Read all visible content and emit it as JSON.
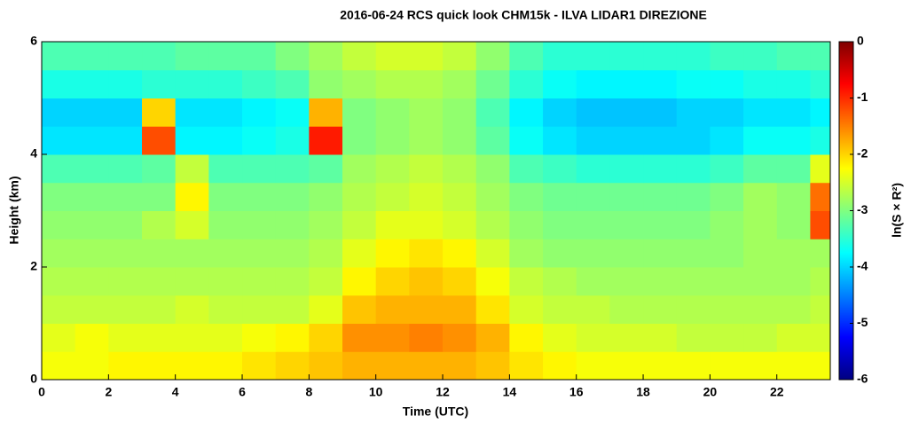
{
  "chart_data": {
    "type": "heatmap",
    "title": "2016-06-24 RCS quick look CHM15k - ILVA LIDAR1 DIREZIONE",
    "xlabel": "Time (UTC)",
    "ylabel": "Height (km)",
    "colorbar_label": "ln(S × R²)",
    "x_edges": [
      0,
      1,
      2,
      3,
      4,
      5,
      6,
      7,
      8,
      9,
      10,
      11,
      12,
      13,
      14,
      15,
      16,
      17,
      18,
      19,
      20,
      21,
      22,
      23,
      23.6
    ],
    "y_edges": [
      0,
      0.5,
      1,
      1.5,
      2,
      2.5,
      3,
      3.5,
      4,
      4.5,
      5,
      5.5,
      6
    ],
    "z": [
      [
        -2.3,
        -2.3,
        -2.2,
        -2.2,
        -2.2,
        -2.2,
        -2.1,
        -2.0,
        -1.9,
        -1.8,
        -1.8,
        -1.8,
        -1.8,
        -1.9,
        -2.1,
        -2.2,
        -2.3,
        -2.3,
        -2.3,
        -2.3,
        -2.3,
        -2.3,
        -2.3,
        -2.3
      ],
      [
        -2.4,
        -2.3,
        -2.4,
        -2.4,
        -2.4,
        -2.4,
        -2.3,
        -2.2,
        -2.0,
        -1.6,
        -1.6,
        -1.5,
        -1.6,
        -1.8,
        -2.2,
        -2.4,
        -2.5,
        -2.5,
        -2.5,
        -2.6,
        -2.6,
        -2.6,
        -2.5,
        -2.5
      ],
      [
        -2.6,
        -2.6,
        -2.6,
        -2.6,
        -2.5,
        -2.6,
        -2.6,
        -2.6,
        -2.4,
        -1.9,
        -1.8,
        -1.8,
        -1.8,
        -2.1,
        -2.5,
        -2.6,
        -2.6,
        -2.7,
        -2.7,
        -2.7,
        -2.7,
        -2.7,
        -2.7,
        -2.6
      ],
      [
        -2.7,
        -2.7,
        -2.7,
        -2.7,
        -2.7,
        -2.7,
        -2.7,
        -2.7,
        -2.6,
        -2.2,
        -2.0,
        -1.9,
        -2.0,
        -2.3,
        -2.6,
        -2.7,
        -2.8,
        -2.8,
        -2.8,
        -2.8,
        -2.8,
        -2.8,
        -2.8,
        -2.7
      ],
      [
        -2.8,
        -2.8,
        -2.8,
        -2.8,
        -2.8,
        -2.8,
        -2.8,
        -2.8,
        -2.7,
        -2.4,
        -2.2,
        -2.1,
        -2.2,
        -2.5,
        -2.8,
        -2.9,
        -2.9,
        -2.9,
        -2.9,
        -2.9,
        -2.9,
        -2.8,
        -2.8,
        -2.8
      ],
      [
        -2.9,
        -2.9,
        -2.9,
        -2.7,
        -2.5,
        -2.9,
        -2.9,
        -2.9,
        -2.8,
        -2.6,
        -2.4,
        -2.4,
        -2.5,
        -2.7,
        -2.9,
        -3.0,
        -3.0,
        -3.0,
        -3.0,
        -3.0,
        -2.9,
        -2.8,
        -2.9,
        -1.2
      ],
      [
        -3.0,
        -3.0,
        -3.0,
        -3.0,
        -2.2,
        -3.0,
        -3.0,
        -3.0,
        -2.9,
        -2.7,
        -2.6,
        -2.5,
        -2.6,
        -2.8,
        -3.0,
        -3.1,
        -3.1,
        -3.1,
        -3.1,
        -3.1,
        -3.0,
        -2.8,
        -2.9,
        -1.4
      ],
      [
        -3.3,
        -3.3,
        -3.3,
        -3.2,
        -2.6,
        -3.3,
        -3.3,
        -3.3,
        -3.2,
        -2.8,
        -2.7,
        -2.6,
        -2.7,
        -2.9,
        -3.3,
        -3.4,
        -3.5,
        -3.5,
        -3.5,
        -3.5,
        -3.4,
        -3.2,
        -3.2,
        -2.4
      ],
      [
        -3.9,
        -3.9,
        -3.9,
        -1.2,
        -3.8,
        -3.8,
        -3.7,
        -3.6,
        -0.9,
        -3.0,
        -2.9,
        -2.8,
        -2.9,
        -3.2,
        -3.7,
        -3.9,
        -4.0,
        -4.0,
        -4.0,
        -4.0,
        -3.9,
        -3.7,
        -3.7,
        -3.6
      ],
      [
        -4.0,
        -4.0,
        -4.0,
        -2.0,
        -3.9,
        -3.9,
        -3.8,
        -3.7,
        -1.8,
        -3.0,
        -2.9,
        -2.8,
        -2.9,
        -3.3,
        -3.8,
        -4.0,
        -4.1,
        -4.1,
        -4.1,
        -4.0,
        -4.0,
        -3.9,
        -3.9,
        -3.8
      ],
      [
        -3.6,
        -3.6,
        -3.6,
        -3.5,
        -3.5,
        -3.5,
        -3.4,
        -3.3,
        -2.9,
        -2.8,
        -2.7,
        -2.7,
        -2.8,
        -3.1,
        -3.5,
        -3.7,
        -3.8,
        -3.8,
        -3.8,
        -3.7,
        -3.7,
        -3.6,
        -3.6,
        -3.5
      ],
      [
        -3.3,
        -3.3,
        -3.3,
        -3.3,
        -3.2,
        -3.2,
        -3.2,
        -3.0,
        -2.8,
        -2.6,
        -2.5,
        -2.5,
        -2.6,
        -2.9,
        -3.3,
        -3.5,
        -3.5,
        -3.5,
        -3.5,
        -3.5,
        -3.4,
        -3.4,
        -3.3,
        -3.3
      ]
    ],
    "xlim": [
      0,
      23.6
    ],
    "xticks": [
      0,
      2,
      4,
      6,
      8,
      10,
      12,
      14,
      16,
      18,
      20,
      22
    ],
    "ylim": [
      0,
      6
    ],
    "yticks": [
      0,
      2,
      4,
      6
    ],
    "clim": [
      -6,
      0
    ],
    "cticks": [
      0,
      -1,
      -2,
      -3,
      -4,
      -5,
      -6
    ],
    "colormap": "jet"
  }
}
